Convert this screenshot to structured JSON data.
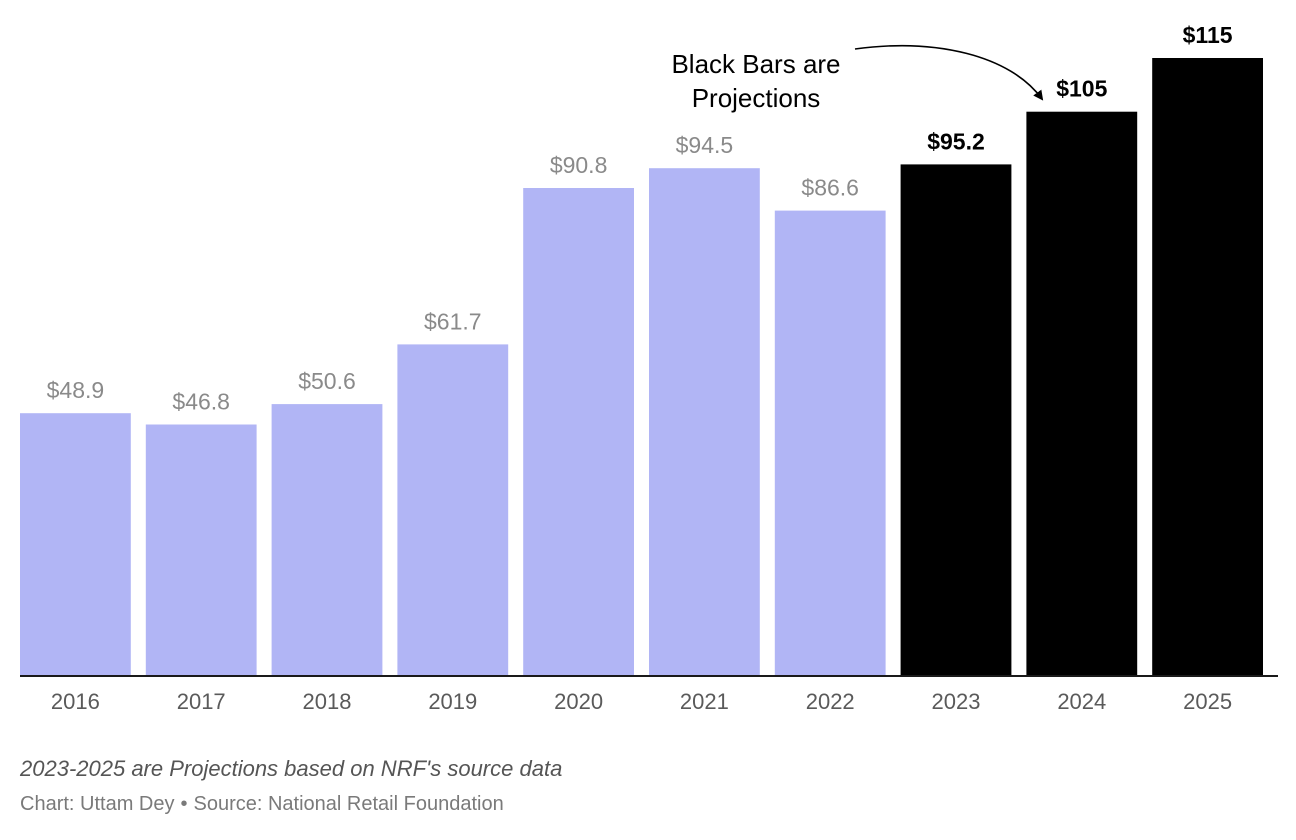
{
  "chart_data": {
    "type": "bar",
    "categories": [
      "2016",
      "2017",
      "2018",
      "2019",
      "2020",
      "2021",
      "2022",
      "2023",
      "2024",
      "2025"
    ],
    "values": [
      48.9,
      46.8,
      50.6,
      61.7,
      90.8,
      94.5,
      86.6,
      95.2,
      105,
      115
    ],
    "value_labels": [
      "$48.9",
      "$46.8",
      "$50.6",
      "$61.7",
      "$90.8",
      "$94.5",
      "$86.6",
      "$95.2",
      "$105",
      "$115"
    ],
    "projected": [
      false,
      false,
      false,
      false,
      false,
      false,
      false,
      true,
      true,
      true
    ],
    "ylim": [
      0,
      115
    ],
    "grid": false,
    "colors": {
      "actual": "#b1b5f5",
      "projected": "#000000",
      "actual_label": "#8a8a8a",
      "projected_label": "#000000",
      "axis_text": "#5a5a5a"
    },
    "annotation": {
      "lines": [
        "Black Bars are",
        "Projections"
      ],
      "points_to": "2024"
    }
  },
  "footer": {
    "note": "2023-2025 are Projections based on NRF's source data",
    "author": "Chart: Uttam Dey",
    "separator": "•",
    "source": "Source: National Retail Foundation"
  }
}
